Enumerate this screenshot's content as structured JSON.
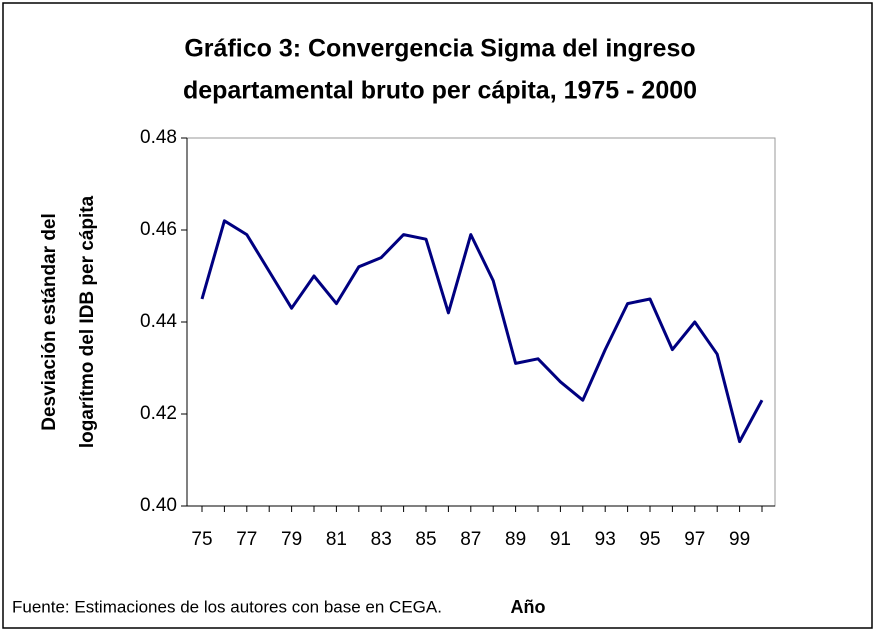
{
  "chart_data": {
    "type": "line",
    "title": [
      "Gráfico 3: Convergencia Sigma del ingreso",
      "departamental bruto per cápita, 1975 - 2000"
    ],
    "ylabel": [
      "Desviación estándar del",
      "logarítmo del IDB per cápita"
    ],
    "xlabel": "Año",
    "note": "Fuente: Estimaciones de los autores con base en CEGA.",
    "categories": [
      "75",
      null,
      "77",
      null,
      "79",
      null,
      "81",
      null,
      "83",
      null,
      "85",
      null,
      "87",
      null,
      "89",
      null,
      "91",
      null,
      "93",
      null,
      "95",
      null,
      "97",
      null,
      "99",
      null
    ],
    "values": [
      0.445,
      0.462,
      0.459,
      0.451,
      0.443,
      0.45,
      0.444,
      0.452,
      0.454,
      0.459,
      0.458,
      0.442,
      0.459,
      0.449,
      0.431,
      0.432,
      0.427,
      0.423,
      0.434,
      0.444,
      0.445,
      0.434,
      0.44,
      0.433,
      0.414,
      0.423
    ],
    "color": "#000080",
    "ylim": [
      0.4,
      0.48
    ],
    "yticks": [
      {
        "value": 0.4,
        "label": "0.40"
      },
      0.42,
      0.44,
      0.46,
      0.48
    ],
    "grid": false
  }
}
